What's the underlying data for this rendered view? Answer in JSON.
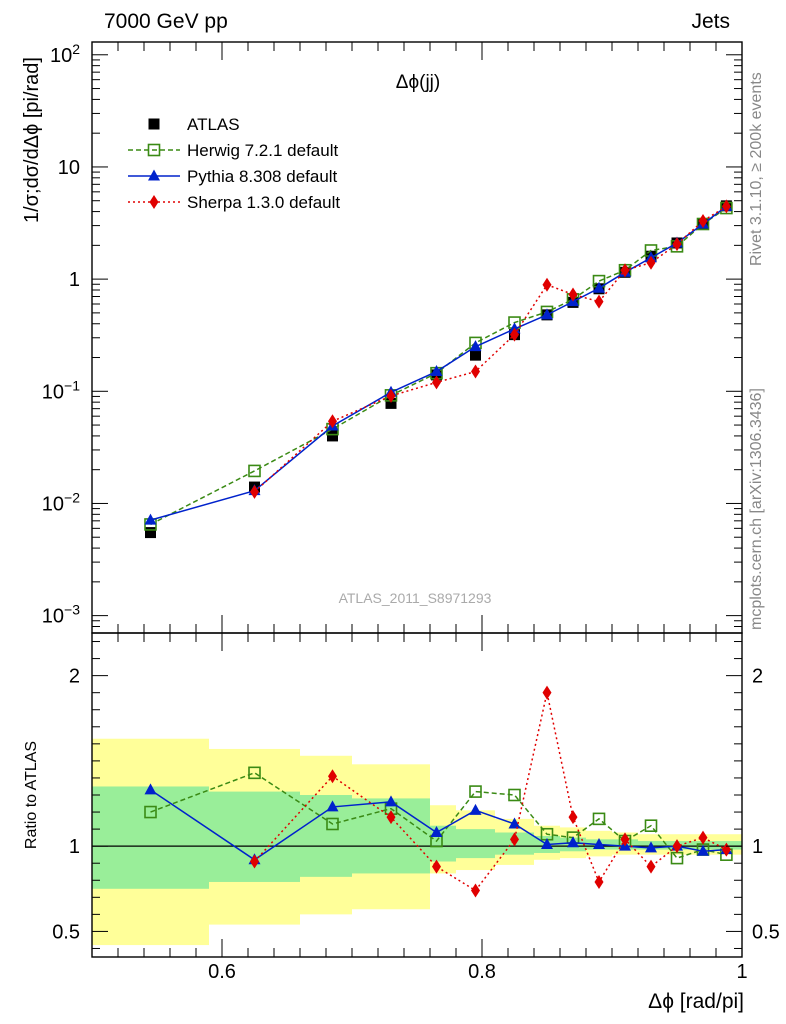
{
  "header": {
    "left": "7000 GeV pp",
    "right": "Jets"
  },
  "side_labels": {
    "top": "Rivet 3.1.10, ≥ 200k events",
    "bottom": "mcplots.cern.ch [arXiv:1306.3436]"
  },
  "chart_data": [
    {
      "type": "scatter",
      "title": "Δϕ(jj)",
      "watermark": "ATLAS_2011_S8971293",
      "ylabel": "1/σ;dσ/dΔϕ [pi/rad]",
      "yscale": "log",
      "ylim": [
        0.0007,
        130
      ],
      "xlim": [
        0.5,
        1.0
      ],
      "yticks": [
        {
          "v": 0.001,
          "b": "10",
          "e": "−3"
        },
        {
          "v": 0.01,
          "b": "10",
          "e": "−2"
        },
        {
          "v": 0.1,
          "b": "10",
          "e": "−1"
        },
        {
          "v": 1,
          "b": "1",
          "e": ""
        },
        {
          "v": 10,
          "b": "10",
          "e": ""
        },
        {
          "v": 100,
          "b": "10",
          "e": "2"
        }
      ],
      "legend_position": "top-left",
      "legend": [
        {
          "label": "ATLAS",
          "color": "#000000",
          "marker": "square-filled",
          "line": "none"
        },
        {
          "label": "Herwig 7.2.1 default",
          "color": "#3a8a14",
          "marker": "square-open",
          "line": "dashed"
        },
        {
          "label": "Pythia 8.308 default",
          "color": "#0022cc",
          "marker": "triangle",
          "line": "solid"
        },
        {
          "label": "Sherpa 1.3.0 default",
          "color": "#e00000",
          "marker": "diamond",
          "line": "dotted"
        }
      ],
      "x": [
        0.545,
        0.625,
        0.685,
        0.73,
        0.765,
        0.795,
        0.825,
        0.85,
        0.87,
        0.89,
        0.91,
        0.93,
        0.95,
        0.97,
        0.988
      ],
      "series": [
        {
          "name": "ATLAS",
          "values": [
            0.0055,
            0.014,
            0.04,
            0.078,
            0.14,
            0.21,
            0.32,
            0.48,
            0.62,
            0.82,
            1.15,
            1.6,
            2.1,
            3.1,
            4.5
          ]
        },
        {
          "name": "Herwig 7.2.1 default",
          "values": [
            0.0065,
            0.0195,
            0.046,
            0.092,
            0.145,
            0.27,
            0.41,
            0.51,
            0.66,
            0.96,
            1.2,
            1.8,
            1.96,
            3.1,
            4.3
          ]
        },
        {
          "name": "Pythia 8.308 default",
          "values": [
            0.0071,
            0.013,
            0.049,
            0.098,
            0.15,
            0.25,
            0.36,
            0.48,
            0.63,
            0.83,
            1.15,
            1.55,
            2.1,
            3.1,
            4.45
          ]
        },
        {
          "name": "Sherpa 1.3.0 default",
          "values": [
            null,
            0.0127,
            0.054,
            0.091,
            0.12,
            0.15,
            0.32,
            0.89,
            0.73,
            0.63,
            1.2,
            1.4,
            2.05,
            3.3,
            4.45
          ]
        }
      ]
    },
    {
      "type": "scatter",
      "ylabel": "Ratio to ATLAS",
      "xlabel": "Δϕ [rad/pi]",
      "ylim": [
        0.35,
        2.25
      ],
      "xlim": [
        0.5,
        1.0
      ],
      "yticks": [
        0.5,
        1,
        2
      ],
      "xticks": [
        0.6,
        0.8,
        1
      ],
      "x": [
        0.545,
        0.625,
        0.685,
        0.73,
        0.765,
        0.795,
        0.825,
        0.85,
        0.87,
        0.89,
        0.91,
        0.93,
        0.95,
        0.97,
        0.988
      ],
      "series": [
        {
          "name": "Herwig 7.2.1 default",
          "values": [
            1.2,
            1.43,
            1.13,
            1.22,
            1.03,
            1.32,
            1.3,
            1.07,
            1.05,
            1.16,
            1.03,
            1.12,
            0.93,
            0.98,
            0.95
          ]
        },
        {
          "name": "Pythia 8.308 default",
          "values": [
            1.33,
            0.92,
            1.23,
            1.26,
            1.08,
            1.21,
            1.13,
            1.01,
            1.02,
            1.01,
            1.0,
            0.99,
            1.0,
            0.97,
            0.98
          ]
        },
        {
          "name": "Sherpa 1.3.0 default",
          "values": [
            null,
            0.91,
            1.41,
            1.17,
            0.88,
            0.74,
            1.04,
            1.9,
            1.17,
            0.79,
            1.04,
            0.88,
            1.0,
            1.05,
            0.98
          ]
        }
      ],
      "bands": {
        "edges": [
          0.5,
          0.59,
          0.66,
          0.7,
          0.76,
          0.78,
          0.81,
          0.84,
          0.86,
          0.88,
          0.9,
          0.92,
          0.94,
          0.96,
          0.98,
          1.0
        ],
        "inner": [
          [
            0.75,
            1.35
          ],
          [
            0.79,
            1.32
          ],
          [
            0.82,
            1.3
          ],
          [
            0.84,
            1.28
          ],
          [
            0.91,
            1.12
          ],
          [
            0.93,
            1.1
          ],
          [
            0.95,
            1.08
          ],
          [
            0.96,
            1.06
          ],
          [
            0.97,
            1.05
          ],
          [
            0.98,
            1.04
          ],
          [
            0.98,
            1.04
          ],
          [
            0.98,
            1.03
          ],
          [
            0.98,
            1.03
          ],
          [
            0.98,
            1.03
          ],
          [
            0.98,
            1.03
          ]
        ],
        "outer": [
          [
            0.42,
            1.63
          ],
          [
            0.54,
            1.57
          ],
          [
            0.6,
            1.53
          ],
          [
            0.63,
            1.48
          ],
          [
            0.84,
            1.24
          ],
          [
            0.86,
            1.21
          ],
          [
            0.89,
            1.16
          ],
          [
            0.92,
            1.12
          ],
          [
            0.93,
            1.11
          ],
          [
            0.94,
            1.09
          ],
          [
            0.95,
            1.08
          ],
          [
            0.95,
            1.07
          ],
          [
            0.95,
            1.07
          ],
          [
            0.95,
            1.07
          ],
          [
            0.95,
            1.07
          ]
        ]
      },
      "band_colors": {
        "outer": "#ffff99",
        "inner": "#99ee99"
      }
    }
  ]
}
